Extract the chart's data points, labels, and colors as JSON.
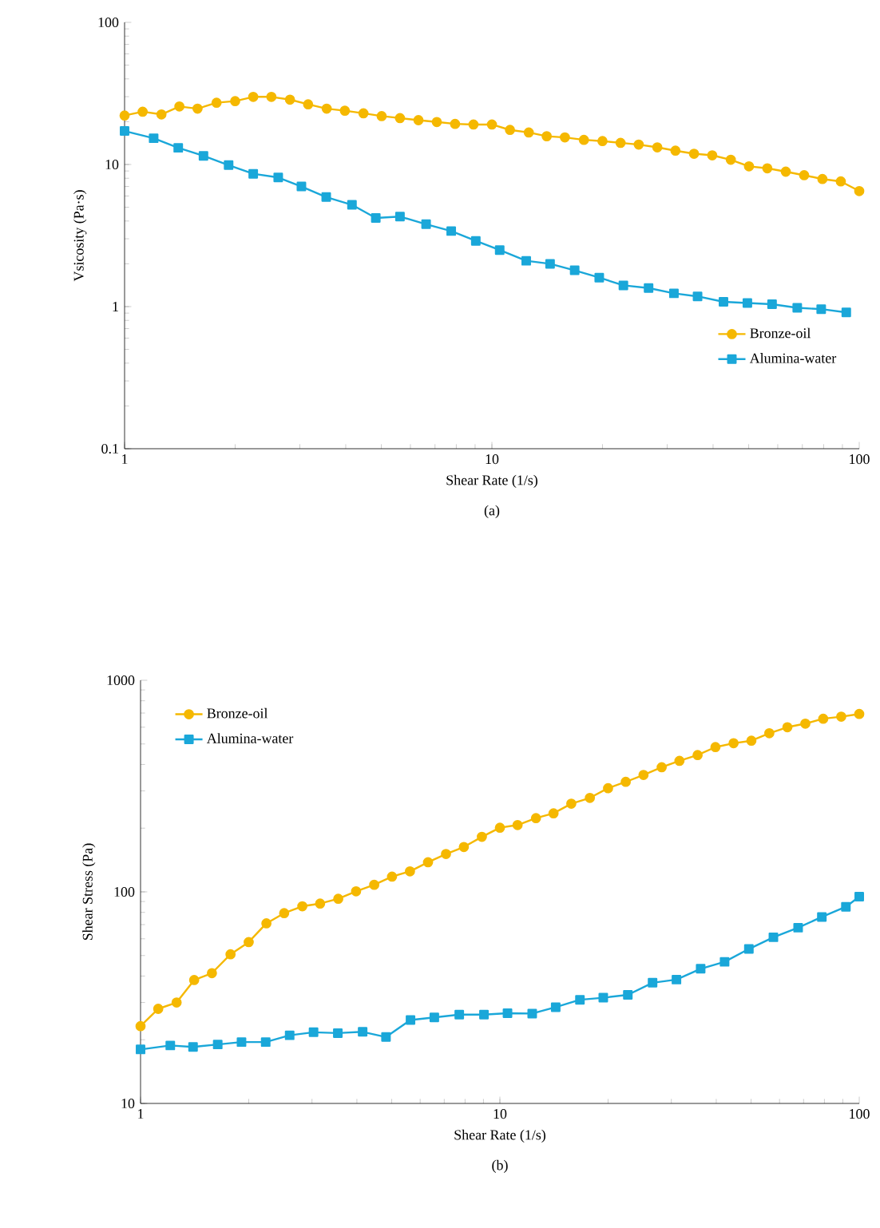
{
  "chart_data": [
    {
      "type": "line",
      "xlabel": "Shear Rate (1/s)",
      "ylabel": "Vsicosity (Pa·s)",
      "annotations": [
        "(a)"
      ],
      "log": "xy",
      "xlim": [
        1,
        100
      ],
      "ylim": [
        0.1,
        100
      ],
      "xticks": [
        1,
        10,
        100
      ],
      "yticks": [
        0.1,
        1,
        10,
        100
      ],
      "grid": false,
      "legend": "bottom right",
      "line_style": "solid",
      "series": [
        {
          "name": "Bronze-oil",
          "color": "#f5b800",
          "marker": "circle",
          "x": [
            1,
            1.12,
            1.26,
            1.41,
            1.58,
            1.78,
            2,
            2.24,
            2.51,
            2.82,
            3.16,
            3.55,
            3.98,
            4.47,
            5.01,
            5.62,
            6.31,
            7.08,
            7.94,
            8.91,
            10,
            11.2,
            12.6,
            14.1,
            15.8,
            17.8,
            20,
            22.4,
            25.1,
            28.2,
            31.6,
            35.5,
            39.8,
            44.7,
            50.1,
            56.2,
            63.1,
            70.8,
            79.4,
            89.1,
            100
          ],
          "values": [
            22.1,
            23.5,
            22.5,
            25.6,
            24.7,
            27.2,
            27.9,
            29.9,
            29.9,
            28.6,
            26.5,
            24.7,
            23.9,
            22.9,
            21.9,
            21.2,
            20.5,
            19.9,
            19.3,
            19.1,
            19.1,
            17.5,
            16.8,
            15.8,
            15.5,
            14.9,
            14.6,
            14.2,
            13.8,
            13.2,
            12.5,
            11.9,
            11.6,
            10.8,
            9.7,
            9.4,
            8.9,
            8.4,
            7.9,
            7.6,
            6.5
          ]
        },
        {
          "name": "Alumina-water",
          "color": "#1aa7d9",
          "marker": "square",
          "x": [
            1,
            1.2,
            1.4,
            1.64,
            1.92,
            2.24,
            2.62,
            3.03,
            3.54,
            4.16,
            4.83,
            5.62,
            6.62,
            7.75,
            9.04,
            10.5,
            12.4,
            14.4,
            16.8,
            19.6,
            22.8,
            26.7,
            31.3,
            36.3,
            42.7,
            49.6,
            57.9,
            67.8,
            78.8,
            92.2
          ],
          "values": [
            17.2,
            15.3,
            13.1,
            11.5,
            9.9,
            8.6,
            8.1,
            7.0,
            5.9,
            5.2,
            4.2,
            4.3,
            3.8,
            3.4,
            2.9,
            2.5,
            2.1,
            2.0,
            1.8,
            1.6,
            1.41,
            1.35,
            1.24,
            1.18,
            1.08,
            1.06,
            1.04,
            0.98,
            0.96,
            0.91
          ]
        }
      ]
    },
    {
      "type": "line",
      "xlabel": "Shear Rate (1/s)",
      "ylabel": "Shear Stress (Pa)",
      "annotations": [
        "(b)"
      ],
      "log": "xy",
      "xlim": [
        1,
        100
      ],
      "ylim": [
        10,
        1000
      ],
      "xticks": [
        1,
        10,
        100
      ],
      "yticks": [
        10,
        100,
        1000
      ],
      "grid": false,
      "legend": "top left",
      "line_style": "solid",
      "series": [
        {
          "name": "Bronze-oil",
          "color": "#f5b800",
          "marker": "circle",
          "x": [
            1,
            1.12,
            1.26,
            1.41,
            1.58,
            1.78,
            2,
            2.24,
            2.51,
            2.82,
            3.16,
            3.55,
            3.98,
            4.47,
            5.01,
            5.62,
            6.31,
            7.08,
            7.94,
            8.91,
            10,
            11.2,
            12.6,
            14.1,
            15.8,
            17.8,
            20,
            22.4,
            25.1,
            28.2,
            31.6,
            35.5,
            39.8,
            44.7,
            50.1,
            56.2,
            63.1,
            70.8,
            79.4,
            89.1,
            100
          ],
          "values": [
            23.2,
            28.0,
            30.0,
            38.3,
            41.3,
            50.7,
            57.9,
            71.0,
            79.3,
            85.5,
            88.0,
            92.7,
            100.6,
            108,
            118,
            125,
            138,
            151,
            163,
            182,
            201,
            207,
            223,
            235,
            261,
            278,
            309,
            331,
            357,
            388,
            416,
            443,
            483,
            504,
            518,
            562,
            600,
            624,
            658,
            673,
            693
          ]
        },
        {
          "name": "Alumina-water",
          "color": "#1aa7d9",
          "marker": "square",
          "x": [
            1,
            1.21,
            1.4,
            1.64,
            1.91,
            2.23,
            2.6,
            3.03,
            3.54,
            4.15,
            4.82,
            5.64,
            6.57,
            7.71,
            9.03,
            10.5,
            12.3,
            14.3,
            16.7,
            19.4,
            22.7,
            26.6,
            31.0,
            36.2,
            42.2,
            49.3,
            57.7,
            67.6,
            78.7,
            91.8,
            100
          ],
          "values": [
            18.0,
            18.8,
            18.5,
            19.0,
            19.5,
            19.5,
            21.0,
            21.7,
            21.5,
            21.8,
            20.6,
            24.8,
            25.5,
            26.3,
            26.3,
            26.7,
            26.6,
            28.5,
            30.9,
            31.6,
            32.6,
            37.2,
            38.5,
            43.3,
            46.7,
            53.7,
            61.0,
            67.7,
            76.1,
            85.0,
            94.9
          ]
        }
      ]
    }
  ]
}
